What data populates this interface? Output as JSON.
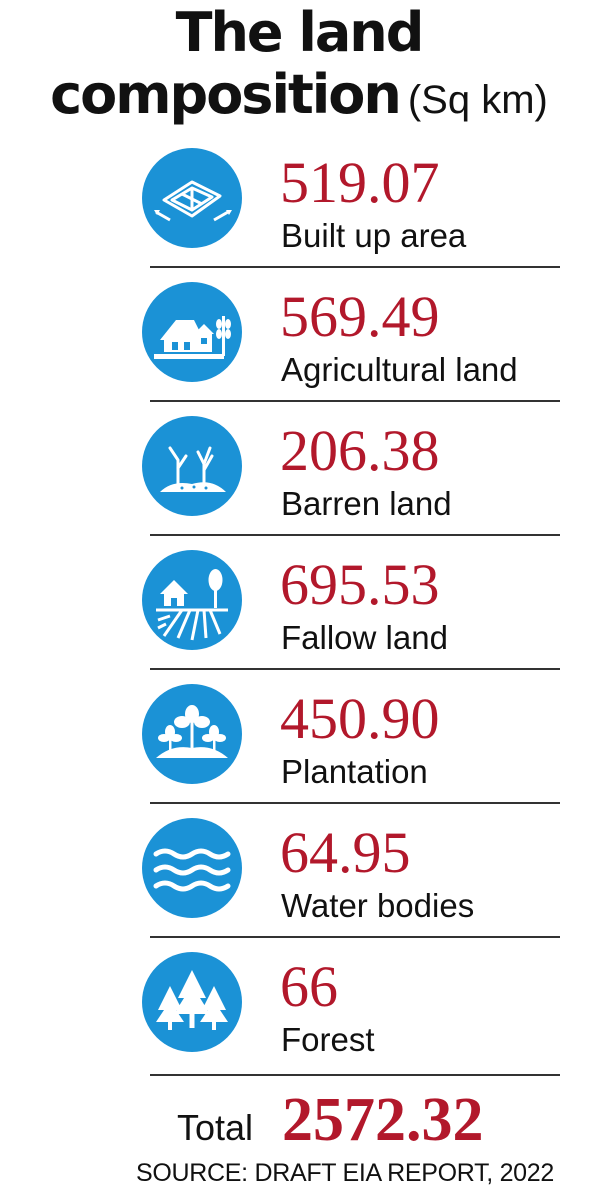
{
  "title": {
    "line1": "The land",
    "line2": "composition",
    "unit": "(Sq km)"
  },
  "items": [
    {
      "value": "519.07",
      "label": "Built up area",
      "icon": "built-up-area-icon"
    },
    {
      "value": "569.49",
      "label": "Agricultural land",
      "icon": "agricultural-land-icon"
    },
    {
      "value": "206.38",
      "label": "Barren land",
      "icon": "barren-land-icon"
    },
    {
      "value": "695.53",
      "label": "Fallow land",
      "icon": "fallow-land-icon"
    },
    {
      "value": "450.90",
      "label": "Plantation",
      "icon": "plantation-icon"
    },
    {
      "value": "64.95",
      "label": "Water bodies",
      "icon": "water-bodies-icon"
    },
    {
      "value": "66",
      "label": "Forest",
      "icon": "forest-icon"
    }
  ],
  "total": {
    "label": "Total",
    "value": "2572.32"
  },
  "source": "SOURCE: DRAFT EIA REPORT, 2022",
  "colors": {
    "accent": "#b2182b",
    "icon_bg": "#1b92d6"
  }
}
